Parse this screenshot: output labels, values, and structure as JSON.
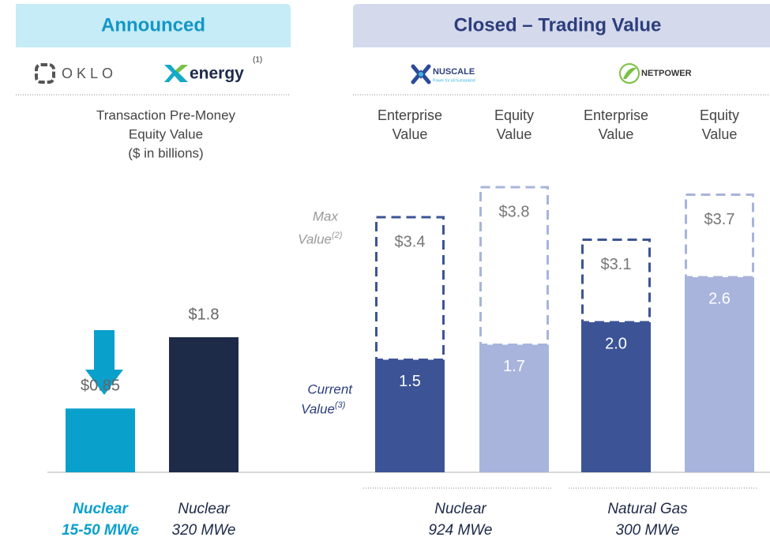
{
  "headers": [
    "Announced",
    "Closed – Trading Value"
  ],
  "logos": {
    "oklo": "OKLO",
    "xenergy": "energy",
    "xenergy_note": "(1)",
    "nuscale": "NUSCALE",
    "nuscale_tagline": "Power for all humankind",
    "netpower": "NETPOWER"
  },
  "announced_label": [
    "Transaction Pre-Money",
    "Equity Value",
    "($ in billions)"
  ],
  "column_labels": [
    [
      "Enterprise",
      "Value"
    ],
    [
      "Equity",
      "Value"
    ],
    [
      "Enterprise",
      "Value"
    ],
    [
      "Equity",
      "Value"
    ]
  ],
  "legend": {
    "max": "Max",
    "max_value": "Value",
    "max_note": "(2)",
    "current": "Current",
    "current_value": "Value",
    "current_note": "(3)"
  },
  "bars": [
    {
      "value": 0.85,
      "label": "$0.85",
      "color": "#0aa0cc"
    },
    {
      "value": 1.8,
      "label": "$1.8",
      "color": "#1d2a48"
    },
    {
      "value": 1.5,
      "label": "1.5",
      "max": 3.4,
      "max_label": "$3.4",
      "color": "#3c5496"
    },
    {
      "value": 1.7,
      "label": "1.7",
      "max": 3.8,
      "max_label": "$3.8",
      "color": "#a8b4dc"
    },
    {
      "value": 2.0,
      "label": "2.0",
      "max": 3.1,
      "max_label": "$3.1",
      "color": "#3c5496"
    },
    {
      "value": 2.6,
      "label": "2.6",
      "max": 3.7,
      "max_label": "$3.7",
      "color": "#a8b4dc"
    }
  ],
  "footers": [
    [
      "Nuclear",
      "15-50 MWe"
    ],
    [
      "Nuclear",
      "320 MWe"
    ],
    [
      "Nuclear",
      "924 MWe"
    ],
    [
      "Natural Gas",
      "300 MWe"
    ]
  ]
}
